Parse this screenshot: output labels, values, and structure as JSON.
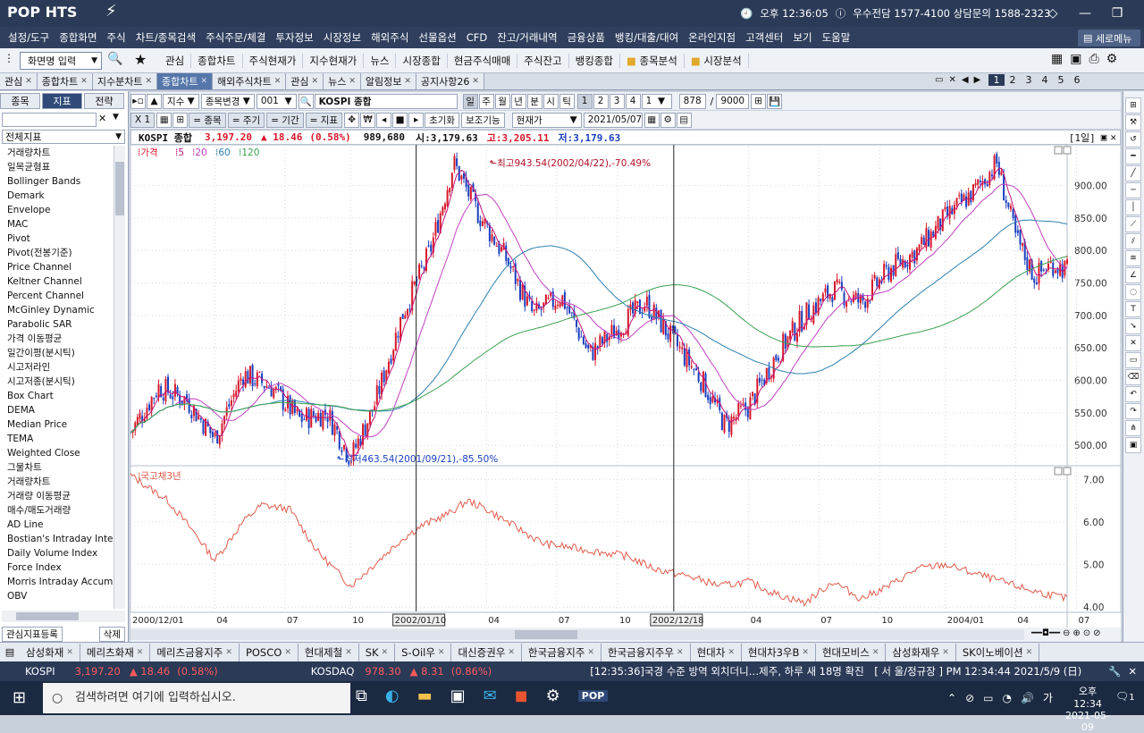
{
  "app": {
    "logo": "POP HTS",
    "time_label": "오후 12:36:05",
    "phone_info": "우수전담 1577-4100 상담문의 1588-2323"
  },
  "menu": [
    "설정/도구",
    "종합화면",
    "주식",
    "차트/종목검색",
    "주식주문/체결",
    "투자정보",
    "시장정보",
    "해외주식",
    "선물옵션",
    "CFD",
    "잔고/거래내역",
    "금융상품",
    "뱅킹/대출/대여",
    "온라인지점",
    "고객센터",
    "보기",
    "도움말"
  ],
  "new_menu": "세로메뉴",
  "toolbar": {
    "screen_input": "화면명 입력",
    "items": [
      "관심",
      "종합차트",
      "주식현재가",
      "지수현재가",
      "뉴스",
      "시장종합",
      "현금주식매매",
      "주식잔고",
      "뱅킹종합"
    ],
    "folders": [
      "종목분석",
      "시장분석"
    ]
  },
  "tabs": [
    {
      "label": "관심",
      "active": false
    },
    {
      "label": "종합차트",
      "active": false
    },
    {
      "label": "지수분차트",
      "active": false
    },
    {
      "label": "종합차트",
      "active": true
    },
    {
      "label": "해외주식차트",
      "active": false
    },
    {
      "label": "관심",
      "active": false
    },
    {
      "label": "뉴스",
      "active": false
    },
    {
      "label": "알림정보",
      "active": false
    },
    {
      "label": "공지사항26",
      "active": false
    }
  ],
  "pages": [
    "1",
    "2",
    "3",
    "4",
    "5",
    "6"
  ],
  "left": {
    "tabs": [
      "종목",
      "지표",
      "전략"
    ],
    "combo": "전체지표",
    "indicators": [
      "거래량차트",
      "일목균형표",
      "Bollinger Bands",
      "Demark",
      "Envelope",
      "MAC",
      "Pivot",
      "Pivot(전봉기준)",
      "Price Channel",
      "Keltner Channel",
      "Percent Channel",
      "McGinley Dynamic",
      "Parabolic SAR",
      "가격 이동평균",
      "일간이평(분시틱)",
      "시고저라인",
      "시고저종(분시틱)",
      "Box Chart",
      "DEMA",
      "Median Price",
      "TEMA",
      "Weighted Close",
      "그물차트",
      "거래량차트",
      "거래량 이동평균",
      "매수/매도거래량",
      "AD Line",
      "Bostian's Intraday Intens",
      "Daily Volume Index",
      "Force Index",
      "Morris Intraday Accumu",
      "OBV"
    ],
    "footer_register": "관심지표등록",
    "footer_delete": "삭제"
  },
  "chart_toolbar": {
    "type_select": "지수",
    "change_label": "종목변경",
    "code": "001",
    "name": "KOSPI 종합",
    "periods": [
      "일",
      "주",
      "월",
      "년",
      "분",
      "시",
      "틱"
    ],
    "period_nums": [
      "1",
      "2",
      "3",
      "4"
    ],
    "count_select": "1",
    "count": "878",
    "max": "9000",
    "row2": [
      "X 1",
      "= 종목",
      "= 주기",
      "= 기간",
      "= 지표",
      "초기화",
      "보조기능"
    ],
    "price_type": "현재가",
    "date": "2021/05/07"
  },
  "info": {
    "name": "KOSPI 종합",
    "price": "3,197.20",
    "change": "▲ 18.46",
    "pct": "(0.58%)",
    "volume": "989,680",
    "open": "시:3,179.63",
    "high": "고:3,205.11",
    "low": "저:3,179.63",
    "period": "[1일]"
  },
  "chart_data": {
    "type": "candlestick",
    "legend": {
      "price": "가격",
      "ma": [
        "5",
        "20",
        "60",
        "120"
      ]
    },
    "main_yticks": [
      "900.00",
      "850.00",
      "800.00",
      "750.00",
      "700.00",
      "650.00",
      "600.00",
      "550.00",
      "500.00"
    ],
    "main_ylim": [
      470,
      960
    ],
    "annotations": {
      "high": "최고943.54(2002/04/22),-70.49%",
      "low": "최저463.54(2001/09/21),-85.50%"
    },
    "close_series_approx": [
      {
        "t": 0.0,
        "v": 520
      },
      {
        "t": 0.03,
        "v": 590
      },
      {
        "t": 0.06,
        "v": 570
      },
      {
        "t": 0.09,
        "v": 510
      },
      {
        "t": 0.12,
        "v": 610
      },
      {
        "t": 0.15,
        "v": 590
      },
      {
        "t": 0.18,
        "v": 540
      },
      {
        "t": 0.21,
        "v": 550
      },
      {
        "t": 0.235,
        "v": 480
      },
      {
        "t": 0.26,
        "v": 560
      },
      {
        "t": 0.29,
        "v": 700
      },
      {
        "t": 0.32,
        "v": 800
      },
      {
        "t": 0.345,
        "v": 935
      },
      {
        "t": 0.37,
        "v": 860
      },
      {
        "t": 0.4,
        "v": 790
      },
      {
        "t": 0.43,
        "v": 700
      },
      {
        "t": 0.46,
        "v": 730
      },
      {
        "t": 0.49,
        "v": 640
      },
      {
        "t": 0.52,
        "v": 680
      },
      {
        "t": 0.55,
        "v": 720
      },
      {
        "t": 0.58,
        "v": 660
      },
      {
        "t": 0.61,
        "v": 600
      },
      {
        "t": 0.635,
        "v": 530
      },
      {
        "t": 0.66,
        "v": 560
      },
      {
        "t": 0.69,
        "v": 640
      },
      {
        "t": 0.72,
        "v": 700
      },
      {
        "t": 0.75,
        "v": 740
      },
      {
        "t": 0.78,
        "v": 720
      },
      {
        "t": 0.81,
        "v": 770
      },
      {
        "t": 0.84,
        "v": 800
      },
      {
        "t": 0.87,
        "v": 850
      },
      {
        "t": 0.9,
        "v": 890
      },
      {
        "t": 0.925,
        "v": 935
      },
      {
        "t": 0.945,
        "v": 820
      },
      {
        "t": 0.965,
        "v": 760
      },
      {
        "t": 0.985,
        "v": 780
      },
      {
        "t": 1.0,
        "v": 770
      }
    ],
    "sub_legend": "국고채3년",
    "sub_yticks": [
      "7.00",
      "6.00",
      "5.00",
      "4.00"
    ],
    "sub_ylim": [
      3.9,
      7.3
    ],
    "bond_series_approx": [
      {
        "t": 0.0,
        "v": 7.1
      },
      {
        "t": 0.04,
        "v": 6.5
      },
      {
        "t": 0.07,
        "v": 5.7
      },
      {
        "t": 0.09,
        "v": 5.1
      },
      {
        "t": 0.12,
        "v": 6.0
      },
      {
        "t": 0.14,
        "v": 6.4
      },
      {
        "t": 0.17,
        "v": 6.3
      },
      {
        "t": 0.2,
        "v": 5.3
      },
      {
        "t": 0.235,
        "v": 4.5
      },
      {
        "t": 0.26,
        "v": 5.0
      },
      {
        "t": 0.29,
        "v": 5.6
      },
      {
        "t": 0.31,
        "v": 5.9
      },
      {
        "t": 0.34,
        "v": 6.2
      },
      {
        "t": 0.36,
        "v": 6.5
      },
      {
        "t": 0.38,
        "v": 6.3
      },
      {
        "t": 0.41,
        "v": 5.9
      },
      {
        "t": 0.44,
        "v": 5.5
      },
      {
        "t": 0.47,
        "v": 5.4
      },
      {
        "t": 0.5,
        "v": 5.3
      },
      {
        "t": 0.53,
        "v": 5.2
      },
      {
        "t": 0.56,
        "v": 4.9
      },
      {
        "t": 0.6,
        "v": 4.7
      },
      {
        "t": 0.63,
        "v": 4.5
      },
      {
        "t": 0.66,
        "v": 4.6
      },
      {
        "t": 0.69,
        "v": 4.3
      },
      {
        "t": 0.72,
        "v": 4.1
      },
      {
        "t": 0.75,
        "v": 4.6
      },
      {
        "t": 0.78,
        "v": 4.2
      },
      {
        "t": 0.81,
        "v": 4.5
      },
      {
        "t": 0.84,
        "v": 4.9
      },
      {
        "t": 0.87,
        "v": 5.0
      },
      {
        "t": 0.9,
        "v": 4.8
      },
      {
        "t": 0.93,
        "v": 4.6
      },
      {
        "t": 0.96,
        "v": 4.4
      },
      {
        "t": 1.0,
        "v": 4.2
      }
    ],
    "xticks": [
      {
        "t": 0.0,
        "label": "2000/12/01"
      },
      {
        "t": 0.09,
        "label": "04"
      },
      {
        "t": 0.165,
        "label": "07"
      },
      {
        "t": 0.235,
        "label": "10"
      },
      {
        "t": 0.305,
        "label": "2002/01/10",
        "boxed": true
      },
      {
        "t": 0.38,
        "label": "04"
      },
      {
        "t": 0.455,
        "label": "07"
      },
      {
        "t": 0.52,
        "label": "10"
      },
      {
        "t": 0.58,
        "label": "2002/12/18",
        "boxed": true
      },
      {
        "t": 0.66,
        "label": "04"
      },
      {
        "t": 0.735,
        "label": "07"
      },
      {
        "t": 0.8,
        "label": "10"
      },
      {
        "t": 0.87,
        "label": "2004/01"
      },
      {
        "t": 0.945,
        "label": "04"
      },
      {
        "t": 1.01,
        "label": "07"
      }
    ],
    "vlines_t": [
      0.305,
      0.58
    ]
  },
  "stock_tabs": [
    "삼성화재",
    "메리츠화재",
    "메리츠금융지주",
    "POSCO",
    "현대제철",
    "SK",
    "S-Oil우",
    "대신증권우",
    "한국금융지주",
    "한국금융지주우",
    "현대차",
    "현대차3우B",
    "현대모비스",
    "삼성화재우",
    "SK이노베이션"
  ],
  "ticker": {
    "kospi_label": "KOSPI",
    "kospi_val": "3,197.20",
    "kospi_chg": "▲ 18.46",
    "kospi_pct": "(0.58%)",
    "kosdaq_label": "KOSDAQ",
    "kosdaq_val": "978.30",
    "kosdaq_chg": "▲ 8.31",
    "kosdaq_pct": "(0.86%)",
    "news": "[12:35:36]국경 수준 방역 외치더니…제주, 하루 새 18명 확진",
    "clock": "[ 서  울/정규장 ] PM 12:34:44  2021/5/9 (日)"
  },
  "taskbar": {
    "search": "검색하려면 여기에 입력하십시오.",
    "time": "오후 12:34",
    "date": "2021-05-09",
    "lang": "가",
    "notif": "1"
  },
  "colors": {
    "up": "#d8182a",
    "down": "#1a3fbf",
    "ma5": "#c0137a",
    "ma20": "#c040c0",
    "ma60": "#2d7fb0",
    "ma120": "#3aa050",
    "bond": "#e05a4a"
  }
}
